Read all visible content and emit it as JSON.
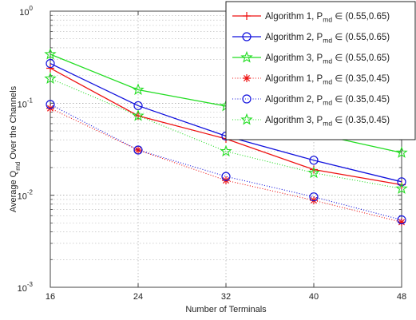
{
  "chart_data": {
    "type": "line",
    "xlabel": "Number of Terminals",
    "ylabel_main": "Average Q",
    "ylabel_sub": "md",
    "ylabel_rest": " Over the Channels",
    "x_ticks": [
      "16",
      "24",
      "32",
      "40",
      "48"
    ],
    "y_ticks": [
      {
        "base": "10",
        "exp": "-3"
      },
      {
        "base": "10",
        "exp": "-2"
      },
      {
        "base": "10",
        "exp": "-1"
      },
      {
        "base": "10",
        "exp": "0"
      }
    ],
    "x": [
      16,
      24,
      32,
      40,
      48
    ],
    "xlim": [
      16,
      48
    ],
    "ylim": [
      0.001,
      1
    ],
    "yscale": "log",
    "grid": true,
    "legend_position": "top-right",
    "series": [
      {
        "name": "Algorithm 1, P",
        "name_sub": "md",
        "name_rest": " ∈ (0.55,0.65)",
        "values": [
          0.24,
          0.073,
          0.041,
          0.019,
          0.013
        ],
        "color": "#ee1111",
        "line": "solid",
        "marker": "plus"
      },
      {
        "name": "Algorithm 2, P",
        "name_sub": "md",
        "name_rest": " ∈ (0.55,0.65)",
        "values": [
          0.27,
          0.094,
          0.044,
          0.024,
          0.014
        ],
        "color": "#1111dd",
        "line": "solid",
        "marker": "circle"
      },
      {
        "name": "Algorithm 3, P",
        "name_sub": "md",
        "name_rest": " ∈ (0.55,0.65)",
        "values": [
          0.34,
          0.14,
          0.093,
          0.047,
          0.029
        ],
        "color": "#22dd22",
        "line": "solid",
        "marker": "star"
      },
      {
        "name": "Algorithm 1, P",
        "name_sub": "md",
        "name_rest": " ∈ (0.35,0.45)",
        "values": [
          0.088,
          0.031,
          0.0145,
          0.0088,
          0.0051
        ],
        "color": "#ee1111",
        "line": "dotted",
        "marker": "asterisk"
      },
      {
        "name": "Algorithm 2, P",
        "name_sub": "md",
        "name_rest": " ∈ (0.35,0.45)",
        "values": [
          0.097,
          0.031,
          0.016,
          0.0096,
          0.0054
        ],
        "color": "#1111dd",
        "line": "dotted",
        "marker": "circle"
      },
      {
        "name": "Algorithm 3, P",
        "name_sub": "md",
        "name_rest": " ∈ (0.35,0.45)",
        "values": [
          0.185,
          0.073,
          0.03,
          0.0175,
          0.0118
        ],
        "color": "#22dd22",
        "line": "dotted",
        "marker": "star"
      }
    ]
  }
}
